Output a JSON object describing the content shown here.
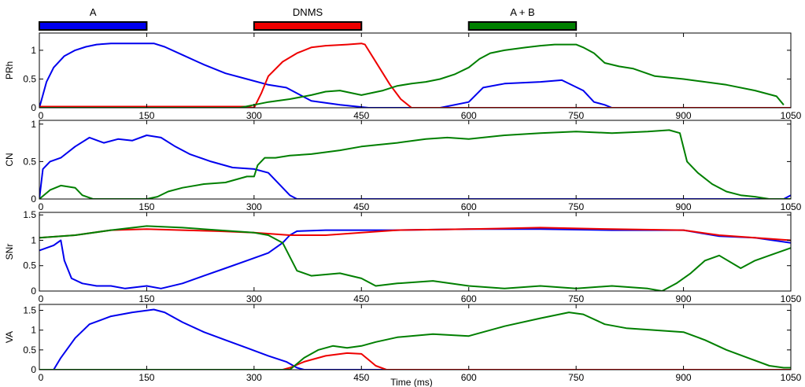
{
  "colors": {
    "A": "#0000ee",
    "DNMS": "#ee0000",
    "AB": "#007f00"
  },
  "stimuli": [
    {
      "label": "A",
      "start": 0,
      "end": 150,
      "color": "#0000ee"
    },
    {
      "label": "DNMS",
      "start": 300,
      "end": 450,
      "color": "#ee0000"
    },
    {
      "label": "A + B",
      "start": 600,
      "end": 750,
      "color": "#007f00"
    }
  ],
  "xlabel": "Time (ms)",
  "chart_data": [
    {
      "type": "line",
      "ylabel": "PRh",
      "xlim": [
        0,
        1050
      ],
      "ylim": [
        0,
        1.3
      ],
      "xticks": [
        "0",
        "150",
        "300",
        "450",
        "600",
        "750",
        "900",
        "1050"
      ],
      "yticks": [
        "0",
        "0.5",
        "1"
      ],
      "ytick_values": [
        0,
        0.5,
        1
      ],
      "series": [
        {
          "color": "#0000ee",
          "x": [
            0,
            10,
            20,
            35,
            50,
            65,
            80,
            100,
            130,
            160,
            175,
            200,
            230,
            260,
            290,
            320,
            345,
            380,
            420,
            460,
            560,
            600,
            620,
            650,
            700,
            730,
            760,
            775,
            790,
            800,
            1050
          ],
          "y": [
            0,
            0.45,
            0.7,
            0.9,
            1.0,
            1.06,
            1.1,
            1.12,
            1.12,
            1.12,
            1.06,
            0.92,
            0.75,
            0.6,
            0.5,
            0.4,
            0.35,
            0.12,
            0.05,
            0,
            0,
            0.1,
            0.35,
            0.42,
            0.45,
            0.48,
            0.3,
            0.1,
            0.05,
            0,
            0
          ]
        },
        {
          "color": "#ee0000",
          "x": [
            0,
            290,
            300,
            310,
            320,
            340,
            360,
            380,
            400,
            430,
            450,
            455,
            465,
            480,
            490,
            505,
            520,
            1050
          ],
          "y": [
            0.02,
            0.02,
            0,
            0.25,
            0.55,
            0.8,
            0.95,
            1.05,
            1.08,
            1.1,
            1.12,
            1.1,
            0.9,
            0.6,
            0.4,
            0.15,
            0,
            0
          ]
        },
        {
          "color": "#007f00",
          "x": [
            0,
            280,
            300,
            320,
            350,
            380,
            400,
            420,
            450,
            480,
            500,
            520,
            540,
            560,
            580,
            600,
            615,
            630,
            650,
            680,
            700,
            720,
            750,
            760,
            775,
            790,
            810,
            830,
            860,
            900,
            930,
            960,
            1000,
            1030,
            1040
          ],
          "y": [
            0,
            0,
            0.05,
            0.1,
            0.15,
            0.22,
            0.28,
            0.3,
            0.22,
            0.3,
            0.38,
            0.42,
            0.45,
            0.5,
            0.58,
            0.7,
            0.85,
            0.95,
            1.0,
            1.05,
            1.08,
            1.1,
            1.1,
            1.05,
            0.95,
            0.78,
            0.72,
            0.68,
            0.55,
            0.5,
            0.45,
            0.4,
            0.3,
            0.2,
            0.05
          ]
        }
      ]
    },
    {
      "type": "line",
      "ylabel": "CN",
      "xlim": [
        0,
        1050
      ],
      "ylim": [
        0,
        1.05
      ],
      "xticks": [
        "0",
        "150",
        "300",
        "450",
        "600",
        "750",
        "900",
        "1050"
      ],
      "yticks": [
        "0",
        "0.5",
        "1"
      ],
      "ytick_values": [
        0,
        0.5,
        1
      ],
      "series": [
        {
          "color": "#0000ee",
          "x": [
            0,
            5,
            15,
            30,
            50,
            70,
            90,
            110,
            130,
            150,
            170,
            190,
            210,
            240,
            270,
            300,
            320,
            340,
            350,
            360,
            1040,
            1050
          ],
          "y": [
            0,
            0.4,
            0.5,
            0.55,
            0.7,
            0.82,
            0.75,
            0.8,
            0.78,
            0.85,
            0.82,
            0.7,
            0.6,
            0.5,
            0.42,
            0.4,
            0.35,
            0.15,
            0.05,
            0,
            0,
            0.05
          ]
        },
        {
          "color": "#007f00",
          "x": [
            0,
            15,
            30,
            50,
            60,
            75,
            100,
            150,
            165,
            180,
            200,
            230,
            260,
            290,
            300,
            305,
            315,
            330,
            350,
            380,
            420,
            450,
            470,
            500,
            540,
            570,
            600,
            650,
            700,
            750,
            800,
            850,
            880,
            895,
            905,
            920,
            940,
            960,
            980,
            1000,
            1020,
            1050
          ],
          "y": [
            0,
            0.12,
            0.18,
            0.15,
            0.05,
            0,
            0,
            0,
            0.03,
            0.1,
            0.15,
            0.2,
            0.22,
            0.3,
            0.3,
            0.45,
            0.55,
            0.55,
            0.58,
            0.6,
            0.65,
            0.7,
            0.72,
            0.75,
            0.8,
            0.82,
            0.8,
            0.85,
            0.88,
            0.9,
            0.88,
            0.9,
            0.92,
            0.88,
            0.5,
            0.35,
            0.2,
            0.1,
            0.05,
            0.03,
            0,
            0
          ]
        }
      ]
    },
    {
      "type": "line",
      "ylabel": "SNr",
      "xlim": [
        0,
        1050
      ],
      "ylim": [
        0,
        1.55
      ],
      "xticks": [
        "0",
        "150",
        "300",
        "450",
        "600",
        "750",
        "900",
        "1050"
      ],
      "yticks": [
        "0",
        "0.5",
        "1",
        "1.5"
      ],
      "ytick_values": [
        0,
        0.5,
        1,
        1.5
      ],
      "series": [
        {
          "color": "#0000ee",
          "x": [
            0,
            10,
            20,
            30,
            35,
            45,
            60,
            80,
            100,
            120,
            150,
            170,
            200,
            230,
            260,
            290,
            320,
            340,
            350,
            360,
            400,
            500,
            600,
            700,
            800,
            900,
            950,
            1000,
            1050
          ],
          "y": [
            0.8,
            0.85,
            0.9,
            1.0,
            0.6,
            0.25,
            0.15,
            0.1,
            0.1,
            0.05,
            0.1,
            0.05,
            0.15,
            0.3,
            0.45,
            0.6,
            0.75,
            0.95,
            1.1,
            1.18,
            1.2,
            1.2,
            1.22,
            1.22,
            1.2,
            1.2,
            1.08,
            1.05,
            0.95
          ]
        },
        {
          "color": "#ee0000",
          "x": [
            0,
            50,
            100,
            150,
            200,
            250,
            300,
            350,
            400,
            450,
            500,
            600,
            700,
            800,
            900,
            950,
            1000,
            1050
          ],
          "y": [
            1.05,
            1.1,
            1.2,
            1.22,
            1.2,
            1.18,
            1.15,
            1.1,
            1.1,
            1.15,
            1.2,
            1.22,
            1.25,
            1.22,
            1.2,
            1.1,
            1.05,
            1.0
          ]
        },
        {
          "color": "#007f00",
          "x": [
            0,
            50,
            100,
            150,
            200,
            250,
            300,
            320,
            340,
            360,
            380,
            420,
            450,
            470,
            500,
            550,
            600,
            650,
            700,
            750,
            800,
            850,
            870,
            890,
            910,
            930,
            950,
            980,
            1000,
            1020,
            1050
          ],
          "y": [
            1.05,
            1.1,
            1.2,
            1.28,
            1.25,
            1.2,
            1.15,
            1.1,
            0.95,
            0.4,
            0.3,
            0.35,
            0.25,
            0.1,
            0.15,
            0.2,
            0.1,
            0.05,
            0.1,
            0.05,
            0.1,
            0.05,
            0.0,
            0.15,
            0.35,
            0.6,
            0.7,
            0.45,
            0.6,
            0.7,
            0.85
          ]
        }
      ]
    },
    {
      "type": "line",
      "ylabel": "VA",
      "xlim": [
        0,
        1050
      ],
      "ylim": [
        0,
        1.65
      ],
      "xticks": [
        "0",
        "150",
        "300",
        "450",
        "600",
        "750",
        "900",
        "1050"
      ],
      "yticks": [
        "0",
        "0.5",
        "1",
        "1.5"
      ],
      "ytick_values": [
        0,
        0.5,
        1,
        1.5
      ],
      "series": [
        {
          "color": "#0000ee",
          "x": [
            0,
            20,
            30,
            50,
            70,
            100,
            130,
            160,
            175,
            200,
            230,
            260,
            290,
            320,
            345,
            360,
            370,
            1050
          ],
          "y": [
            0,
            0,
            0.3,
            0.8,
            1.15,
            1.35,
            1.45,
            1.52,
            1.45,
            1.2,
            0.95,
            0.75,
            0.55,
            0.35,
            0.2,
            0.05,
            0,
            0
          ]
        },
        {
          "color": "#ee0000",
          "x": [
            0,
            340,
            350,
            370,
            400,
            430,
            450,
            460,
            470,
            485,
            1050
          ],
          "y": [
            0,
            0,
            0.05,
            0.2,
            0.35,
            0.42,
            0.4,
            0.25,
            0.1,
            0,
            0
          ]
        },
        {
          "color": "#007f00",
          "x": [
            0,
            350,
            370,
            390,
            410,
            430,
            450,
            470,
            500,
            550,
            600,
            650,
            700,
            740,
            760,
            790,
            820,
            860,
            900,
            930,
            960,
            990,
            1020,
            1040,
            1050
          ],
          "y": [
            0,
            0,
            0.3,
            0.5,
            0.6,
            0.55,
            0.6,
            0.7,
            0.82,
            0.9,
            0.85,
            1.1,
            1.3,
            1.45,
            1.4,
            1.15,
            1.05,
            1.0,
            0.95,
            0.75,
            0.5,
            0.3,
            0.1,
            0.05,
            0.05
          ]
        }
      ]
    }
  ]
}
